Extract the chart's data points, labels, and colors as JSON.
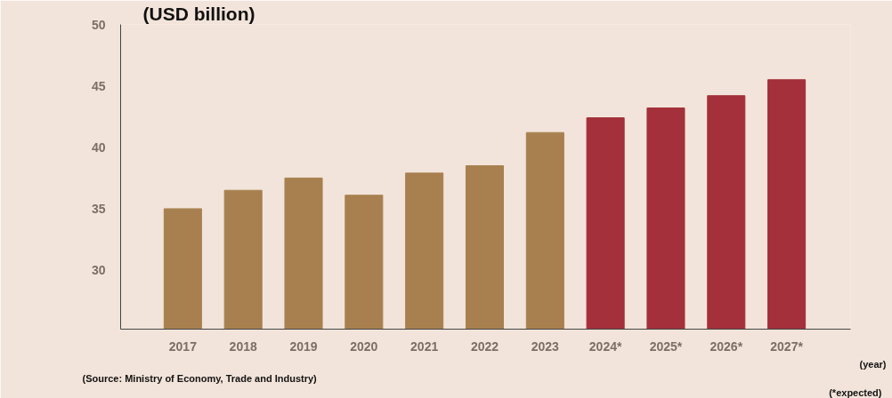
{
  "chart_data": {
    "type": "bar",
    "ylabel": "(USD billion)",
    "xlabel": "(year)",
    "categories": [
      "2017",
      "2018",
      "2019",
      "2020",
      "2021",
      "2022",
      "2023",
      "2024*",
      "2025*",
      "2026*",
      "2027*"
    ],
    "values": [
      35.0,
      36.5,
      37.5,
      36.1,
      37.9,
      38.5,
      41.2,
      42.4,
      43.2,
      44.2,
      45.5
    ],
    "colors": [
      "#a8804f",
      "#a8804f",
      "#a8804f",
      "#a8804f",
      "#a8804f",
      "#a8804f",
      "#a8804f",
      "#a3303a",
      "#a3303a",
      "#a3303a",
      "#a3303a"
    ],
    "ylim": [
      25.2,
      50
    ],
    "yticks": [
      30,
      35,
      40,
      45,
      50
    ],
    "grid": false,
    "annotations": [
      "(Source: Ministry of Economy, Trade and Industry)",
      "(*expected)"
    ]
  }
}
